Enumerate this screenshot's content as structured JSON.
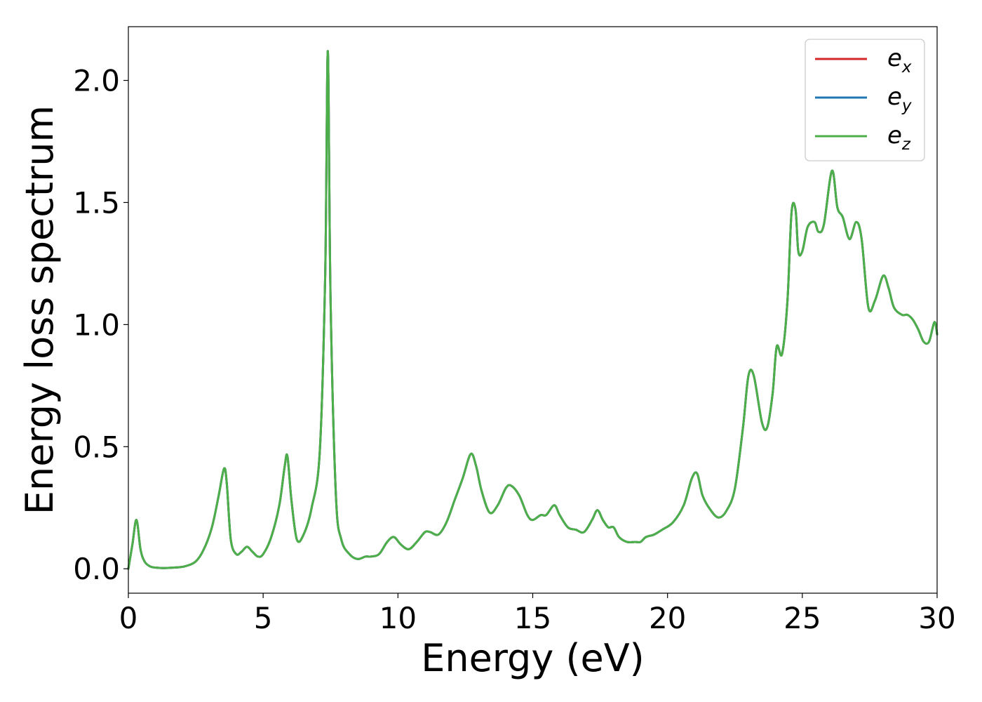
{
  "chart_data": {
    "type": "line",
    "xlabel": "Energy (eV)",
    "ylabel": "Energy loss spectrum",
    "xlim": [
      0,
      30
    ],
    "ylim": [
      -0.1,
      2.22
    ],
    "xticks": [
      0,
      5,
      10,
      15,
      20,
      25,
      30
    ],
    "yticks": [
      0.0,
      0.5,
      1.0,
      1.5,
      2.0
    ],
    "xtick_labels": [
      "0",
      "5",
      "10",
      "15",
      "20",
      "25",
      "30"
    ],
    "ytick_labels": [
      "0.0",
      "0.5",
      "1.0",
      "1.5",
      "2.0"
    ],
    "grid": false,
    "legend_position": "top-right",
    "series": [
      {
        "name": "e_x",
        "label_base": "e",
        "label_sub": "x",
        "color": "#d62728"
      },
      {
        "name": "e_y",
        "label_base": "e",
        "label_sub": "y",
        "color": "#1f77b4"
      },
      {
        "name": "e_z",
        "label_base": "e",
        "label_sub": "z",
        "color": "#4daf4a"
      }
    ],
    "x": [
      0.0,
      0.15,
      0.3,
      0.45,
      0.6,
      0.8,
      1.0,
      1.3,
      1.7,
      2.1,
      2.5,
      2.8,
      3.1,
      3.35,
      3.55,
      3.65,
      3.8,
      4.0,
      4.2,
      4.4,
      4.6,
      4.8,
      5.0,
      5.3,
      5.6,
      5.8,
      5.9,
      6.05,
      6.25,
      6.5,
      6.8,
      7.1,
      7.3,
      7.4,
      7.5,
      7.7,
      7.9,
      8.2,
      8.5,
      8.8,
      9.0,
      9.3,
      9.6,
      9.85,
      10.1,
      10.4,
      10.7,
      11.0,
      11.2,
      11.5,
      11.8,
      12.1,
      12.4,
      12.7,
      12.9,
      13.1,
      13.4,
      13.7,
      14.0,
      14.2,
      14.5,
      14.8,
      15.0,
      15.3,
      15.5,
      15.8,
      16.0,
      16.3,
      16.6,
      16.9,
      17.2,
      17.4,
      17.6,
      17.8,
      18.0,
      18.2,
      18.5,
      18.8,
      19.0,
      19.2,
      19.5,
      19.8,
      20.2,
      20.6,
      20.9,
      21.1,
      21.3,
      21.6,
      21.9,
      22.2,
      22.5,
      22.8,
      23.0,
      23.2,
      23.5,
      23.7,
      23.9,
      24.05,
      24.25,
      24.45,
      24.6,
      24.75,
      24.85,
      25.0,
      25.2,
      25.45,
      25.6,
      25.8,
      26.1,
      26.3,
      26.5,
      26.75,
      27.0,
      27.2,
      27.45,
      27.7,
      28.0,
      28.2,
      28.4,
      28.7,
      28.9,
      29.1,
      29.3,
      29.5,
      29.7,
      29.9,
      30.0
    ],
    "values": [
      0.0,
      0.1,
      0.2,
      0.08,
      0.03,
      0.01,
      0.005,
      0.003,
      0.005,
      0.01,
      0.03,
      0.08,
      0.17,
      0.3,
      0.41,
      0.35,
      0.12,
      0.06,
      0.07,
      0.09,
      0.07,
      0.05,
      0.06,
      0.13,
      0.26,
      0.42,
      0.46,
      0.28,
      0.12,
      0.14,
      0.25,
      0.48,
      1.2,
      2.12,
      1.1,
      0.3,
      0.12,
      0.06,
      0.04,
      0.05,
      0.05,
      0.06,
      0.11,
      0.13,
      0.1,
      0.08,
      0.11,
      0.15,
      0.15,
      0.14,
      0.19,
      0.28,
      0.37,
      0.47,
      0.42,
      0.32,
      0.23,
      0.26,
      0.33,
      0.34,
      0.3,
      0.22,
      0.2,
      0.22,
      0.22,
      0.26,
      0.22,
      0.17,
      0.16,
      0.15,
      0.2,
      0.24,
      0.2,
      0.17,
      0.17,
      0.13,
      0.11,
      0.11,
      0.11,
      0.13,
      0.14,
      0.16,
      0.19,
      0.26,
      0.37,
      0.39,
      0.3,
      0.24,
      0.21,
      0.24,
      0.33,
      0.58,
      0.79,
      0.79,
      0.6,
      0.58,
      0.72,
      0.91,
      0.88,
      1.1,
      1.46,
      1.47,
      1.3,
      1.3,
      1.4,
      1.42,
      1.38,
      1.41,
      1.63,
      1.48,
      1.44,
      1.35,
      1.42,
      1.35,
      1.07,
      1.1,
      1.2,
      1.15,
      1.07,
      1.04,
      1.04,
      1.02,
      0.98,
      0.93,
      0.93,
      1.01,
      0.96
    ]
  }
}
